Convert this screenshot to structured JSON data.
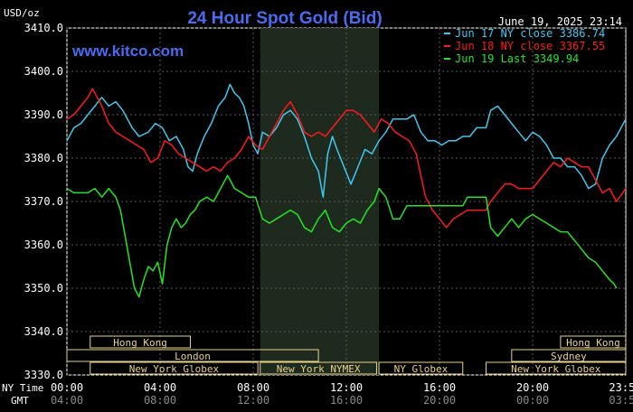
{
  "chart_data": {
    "type": "line",
    "title": "24 Hour Spot Gold (Bid)",
    "units_label": "USD/oz",
    "timestamp": "June 19, 2025 23:14",
    "brand": "www.kitco.com",
    "ylim": [
      3330,
      3410
    ],
    "y_ticks": [
      "3330.0",
      "3340.0",
      "3350.0",
      "3360.0",
      "3370.0",
      "3380.0",
      "3390.0",
      "3400.0",
      "3410.0"
    ],
    "x_range_hours": [
      0,
      24
    ],
    "ny_time_label": "NY Time",
    "gmt_label": "GMT",
    "ny_ticks": [
      {
        "h": 0,
        "label": "00:00"
      },
      {
        "h": 4,
        "label": "04:00"
      },
      {
        "h": 8,
        "label": "08:00"
      },
      {
        "h": 12,
        "label": "12:00"
      },
      {
        "h": 16,
        "label": "16:00"
      },
      {
        "h": 20,
        "label": "20:00"
      },
      {
        "h": 23.98,
        "label": "23:59"
      }
    ],
    "gmt_ticks": [
      {
        "h": 0,
        "label": "04:00"
      },
      {
        "h": 4,
        "label": "08:00"
      },
      {
        "h": 8,
        "label": "12:00"
      },
      {
        "h": 12,
        "label": "16:00"
      },
      {
        "h": 16,
        "label": "20:00"
      },
      {
        "h": 20,
        "label": "00:00"
      },
      {
        "h": 23.98,
        "label": "03:59"
      }
    ],
    "shaded_hours": [
      8.3,
      13.4
    ],
    "sessions": [
      {
        "label": "Hong Kong",
        "start": 1.0,
        "end": 5.3,
        "row": 0
      },
      {
        "label": "London",
        "start": 0,
        "end": 10.8,
        "row": 1
      },
      {
        "label": "New York Globex",
        "start": 1.0,
        "end": 8.2,
        "row": 2
      },
      {
        "label": "New York NYMEX",
        "start": 8.3,
        "end": 13.3,
        "row": 2
      },
      {
        "label": "NY Globex",
        "start": 13.4,
        "end": 17.0,
        "row": 2
      },
      {
        "label": "Hong Kong",
        "start": 21.2,
        "end": 24,
        "row": 0
      },
      {
        "label": "Sydney",
        "start": 19.1,
        "end": 24,
        "row": 1
      },
      {
        "label": "New York Globex",
        "start": 18.0,
        "end": 24,
        "row": 2
      }
    ],
    "legend_position": "top-right",
    "series": [
      {
        "name": "Jun 17 NY close 3386.74",
        "color": "#40c8f0",
        "points": [
          [
            0,
            3384
          ],
          [
            0.3,
            3387
          ],
          [
            0.6,
            3388
          ],
          [
            0.9,
            3390
          ],
          [
            1.2,
            3392
          ],
          [
            1.5,
            3394
          ],
          [
            1.8,
            3392
          ],
          [
            2.1,
            3393
          ],
          [
            2.4,
            3391
          ],
          [
            2.8,
            3387
          ],
          [
            3.1,
            3385
          ],
          [
            3.5,
            3386
          ],
          [
            3.8,
            3388
          ],
          [
            4.1,
            3387
          ],
          [
            4.4,
            3384
          ],
          [
            4.7,
            3385
          ],
          [
            5.0,
            3382
          ],
          [
            5.2,
            3378
          ],
          [
            5.4,
            3377
          ],
          [
            5.6,
            3381
          ],
          [
            5.9,
            3385
          ],
          [
            6.2,
            3388
          ],
          [
            6.5,
            3392
          ],
          [
            6.8,
            3394
          ],
          [
            7.0,
            3397
          ],
          [
            7.2,
            3395
          ],
          [
            7.4,
            3394
          ],
          [
            7.6,
            3392
          ],
          [
            7.8,
            3388
          ],
          [
            8.0,
            3383
          ],
          [
            8.2,
            3381
          ],
          [
            8.4,
            3386
          ],
          [
            8.7,
            3385
          ],
          [
            9.0,
            3387
          ],
          [
            9.3,
            3390
          ],
          [
            9.6,
            3391
          ],
          [
            9.9,
            3389
          ],
          [
            10.2,
            3385
          ],
          [
            10.5,
            3380
          ],
          [
            10.8,
            3377
          ],
          [
            11.0,
            3371
          ],
          [
            11.2,
            3381
          ],
          [
            11.4,
            3385
          ],
          [
            11.6,
            3382
          ],
          [
            11.9,
            3378
          ],
          [
            12.2,
            3374
          ],
          [
            12.5,
            3378
          ],
          [
            12.8,
            3382
          ],
          [
            13.1,
            3381
          ],
          [
            13.4,
            3384
          ],
          [
            13.7,
            3386
          ],
          [
            14.0,
            3389
          ],
          [
            14.3,
            3389
          ],
          [
            14.6,
            3389
          ],
          [
            14.9,
            3390
          ],
          [
            15.2,
            3386
          ],
          [
            15.5,
            3384
          ],
          [
            15.8,
            3384
          ],
          [
            16.1,
            3383
          ],
          [
            16.4,
            3384
          ],
          [
            16.7,
            3384
          ],
          [
            17.0,
            3385
          ],
          [
            17.3,
            3385
          ],
          [
            17.6,
            3387
          ],
          [
            18.0,
            3387
          ],
          [
            18.2,
            3391
          ],
          [
            18.5,
            3392
          ],
          [
            18.8,
            3390
          ],
          [
            19.1,
            3388
          ],
          [
            19.4,
            3386
          ],
          [
            19.7,
            3384
          ],
          [
            20.0,
            3386
          ],
          [
            20.3,
            3385
          ],
          [
            20.6,
            3383
          ],
          [
            20.9,
            3380
          ],
          [
            21.2,
            3380
          ],
          [
            21.5,
            3378
          ],
          [
            21.8,
            3378
          ],
          [
            22.1,
            3376
          ],
          [
            22.4,
            3373
          ],
          [
            22.7,
            3374
          ],
          [
            23.0,
            3380
          ],
          [
            23.3,
            3383
          ],
          [
            23.6,
            3385
          ],
          [
            24,
            3389
          ]
        ]
      },
      {
        "name": "Jun 18 NY close 3367.55",
        "color": "#ff1a1a",
        "points": [
          [
            0,
            3389
          ],
          [
            0.3,
            3390
          ],
          [
            0.6,
            3392
          ],
          [
            0.9,
            3394
          ],
          [
            1.1,
            3396
          ],
          [
            1.3,
            3394
          ],
          [
            1.5,
            3392
          ],
          [
            1.8,
            3388
          ],
          [
            2.1,
            3386
          ],
          [
            2.4,
            3385
          ],
          [
            2.7,
            3384
          ],
          [
            3.0,
            3383
          ],
          [
            3.3,
            3382
          ],
          [
            3.6,
            3379
          ],
          [
            3.9,
            3380
          ],
          [
            4.2,
            3384
          ],
          [
            4.5,
            3383
          ],
          [
            4.8,
            3381
          ],
          [
            5.1,
            3380
          ],
          [
            5.4,
            3379
          ],
          [
            5.7,
            3378
          ],
          [
            6.0,
            3377
          ],
          [
            6.3,
            3378
          ],
          [
            6.6,
            3377
          ],
          [
            6.9,
            3379
          ],
          [
            7.2,
            3380
          ],
          [
            7.5,
            3382
          ],
          [
            7.8,
            3385
          ],
          [
            8.1,
            3383
          ],
          [
            8.4,
            3382
          ],
          [
            8.7,
            3385
          ],
          [
            9.0,
            3388
          ],
          [
            9.3,
            3391
          ],
          [
            9.6,
            3393
          ],
          [
            9.9,
            3390
          ],
          [
            10.2,
            3386
          ],
          [
            10.5,
            3385
          ],
          [
            10.8,
            3386
          ],
          [
            11.1,
            3385
          ],
          [
            11.4,
            3387
          ],
          [
            11.7,
            3389
          ],
          [
            12.0,
            3391
          ],
          [
            12.3,
            3391
          ],
          [
            12.6,
            3390
          ],
          [
            12.9,
            3388
          ],
          [
            13.2,
            3386
          ],
          [
            13.5,
            3389
          ],
          [
            13.8,
            3388
          ],
          [
            14.1,
            3386
          ],
          [
            14.4,
            3385
          ],
          [
            14.7,
            3384
          ],
          [
            15.0,
            3381
          ],
          [
            15.2,
            3376
          ],
          [
            15.4,
            3371
          ],
          [
            15.7,
            3368
          ],
          [
            16.0,
            3366
          ],
          [
            16.3,
            3364
          ],
          [
            16.6,
            3366
          ],
          [
            16.9,
            3367
          ],
          [
            17.2,
            3368
          ],
          [
            17.5,
            3368
          ],
          [
            18.0,
            3368
          ],
          [
            18.2,
            3370
          ],
          [
            18.5,
            3372
          ],
          [
            18.8,
            3374
          ],
          [
            19.1,
            3374
          ],
          [
            19.4,
            3373
          ],
          [
            19.7,
            3373
          ],
          [
            20.0,
            3373
          ],
          [
            20.3,
            3375
          ],
          [
            20.6,
            3377
          ],
          [
            20.9,
            3379
          ],
          [
            21.2,
            3378
          ],
          [
            21.5,
            3380
          ],
          [
            21.8,
            3379
          ],
          [
            22.1,
            3378
          ],
          [
            22.4,
            3378
          ],
          [
            22.7,
            3375
          ],
          [
            23.0,
            3372
          ],
          [
            23.3,
            3373
          ],
          [
            23.6,
            3370
          ],
          [
            24,
            3373
          ]
        ]
      },
      {
        "name": "Jun 19 Last 3349.94",
        "color": "#22e622",
        "points": [
          [
            0,
            3373
          ],
          [
            0.3,
            3372
          ],
          [
            0.6,
            3372
          ],
          [
            0.9,
            3372
          ],
          [
            1.2,
            3373
          ],
          [
            1.5,
            3371
          ],
          [
            1.8,
            3373
          ],
          [
            2.1,
            3371
          ],
          [
            2.3,
            3368
          ],
          [
            2.5,
            3362
          ],
          [
            2.7,
            3356
          ],
          [
            2.9,
            3350
          ],
          [
            3.1,
            3348
          ],
          [
            3.3,
            3352
          ],
          [
            3.5,
            3355
          ],
          [
            3.7,
            3354
          ],
          [
            3.9,
            3356
          ],
          [
            4.1,
            3351
          ],
          [
            4.3,
            3360
          ],
          [
            4.5,
            3364
          ],
          [
            4.7,
            3366
          ],
          [
            4.9,
            3364
          ],
          [
            5.1,
            3365
          ],
          [
            5.3,
            3367
          ],
          [
            5.5,
            3368
          ],
          [
            5.7,
            3370
          ],
          [
            6.0,
            3371
          ],
          [
            6.3,
            3370
          ],
          [
            6.6,
            3373
          ],
          [
            6.9,
            3376
          ],
          [
            7.2,
            3373
          ],
          [
            7.5,
            3372
          ],
          [
            7.8,
            3371
          ],
          [
            8.1,
            3371
          ],
          [
            8.4,
            3366
          ],
          [
            8.7,
            3365
          ],
          [
            9.0,
            3366
          ],
          [
            9.3,
            3367
          ],
          [
            9.6,
            3368
          ],
          [
            9.9,
            3367
          ],
          [
            10.2,
            3364
          ],
          [
            10.5,
            3363
          ],
          [
            10.8,
            3366
          ],
          [
            11.1,
            3368
          ],
          [
            11.4,
            3364
          ],
          [
            11.7,
            3363
          ],
          [
            12.0,
            3365
          ],
          [
            12.3,
            3366
          ],
          [
            12.6,
            3365
          ],
          [
            12.9,
            3368
          ],
          [
            13.2,
            3370
          ],
          [
            13.4,
            3373
          ],
          [
            13.7,
            3371
          ],
          [
            14.0,
            3366
          ],
          [
            14.3,
            3366
          ],
          [
            14.6,
            3369
          ],
          [
            14.9,
            3369
          ],
          [
            15.2,
            3369
          ],
          [
            15.5,
            3369
          ],
          [
            15.8,
            3369
          ],
          [
            16.1,
            3369
          ],
          [
            16.4,
            3369
          ],
          [
            16.7,
            3369
          ],
          [
            17.0,
            3369
          ],
          [
            17.2,
            3371
          ],
          [
            17.6,
            3371
          ],
          [
            18.0,
            3371
          ],
          [
            18.2,
            3364
          ],
          [
            18.5,
            3362
          ],
          [
            18.8,
            3364
          ],
          [
            19.1,
            3366
          ],
          [
            19.4,
            3364
          ],
          [
            19.7,
            3366
          ],
          [
            20.0,
            3367
          ],
          [
            20.3,
            3366
          ],
          [
            20.6,
            3365
          ],
          [
            20.9,
            3364
          ],
          [
            21.2,
            3363
          ],
          [
            21.5,
            3363
          ],
          [
            21.8,
            3361
          ],
          [
            22.1,
            3359
          ],
          [
            22.4,
            3357
          ],
          [
            22.7,
            3356
          ],
          [
            23.0,
            3354
          ],
          [
            23.3,
            3352
          ],
          [
            23.5,
            3351
          ],
          [
            23.6,
            3350
          ]
        ]
      }
    ]
  }
}
